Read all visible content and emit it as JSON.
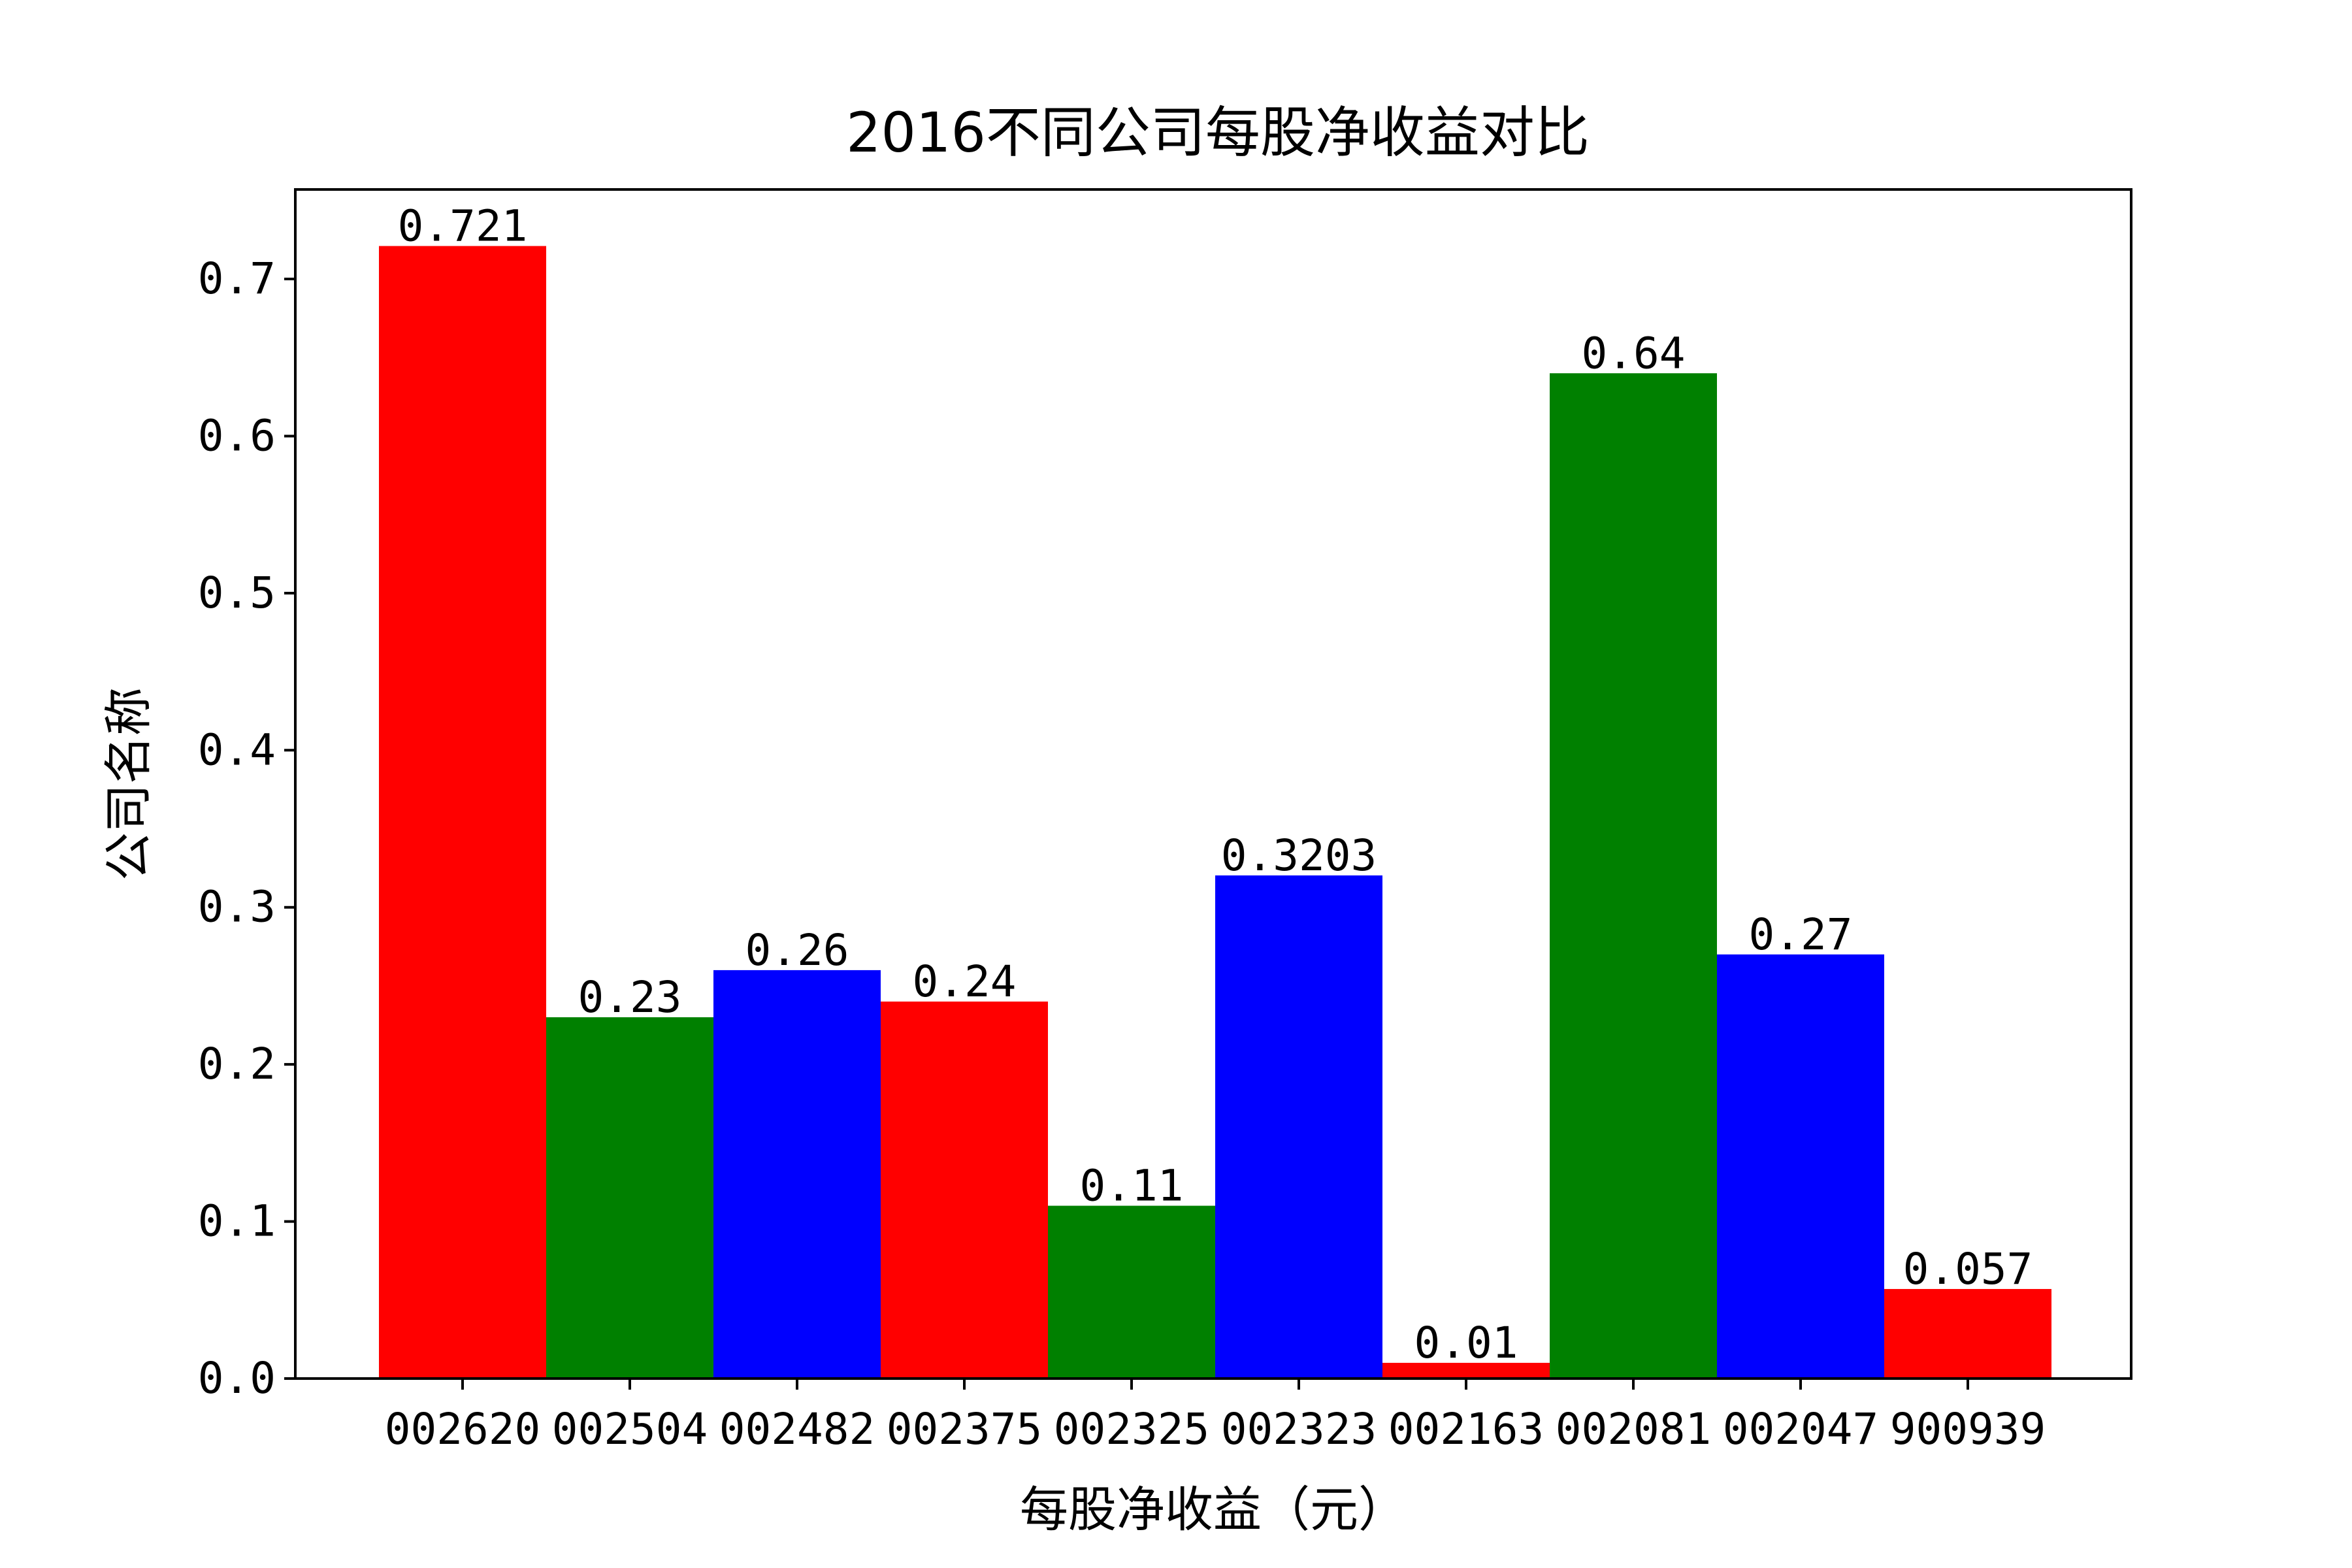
{
  "chart_data": {
    "type": "bar",
    "title": "2016不同公司每股净收益对比",
    "xlabel": "每股净收益（元）",
    "ylabel": "公司名称",
    "categories": [
      "002620",
      "002504",
      "002482",
      "002375",
      "002325",
      "002323",
      "002163",
      "002081",
      "002047",
      "900939"
    ],
    "values": [
      0.721,
      0.23,
      0.26,
      0.24,
      0.11,
      0.3203,
      0.01,
      0.64,
      0.27,
      0.057
    ],
    "value_labels": [
      "0.721",
      "0.23",
      "0.26",
      "0.24",
      "0.11",
      "0.3203",
      "0.01",
      "0.64",
      "0.27",
      "0.057"
    ],
    "bar_colors": [
      "#ff0000",
      "#008000",
      "#0000ff",
      "#ff0000",
      "#008000",
      "#0000ff",
      "#ff0000",
      "#008000",
      "#0000ff",
      "#ff0000"
    ],
    "yticks": [
      "0.0",
      "0.1",
      "0.2",
      "0.3",
      "0.4",
      "0.5",
      "0.6",
      "0.7"
    ],
    "ylim": [
      0,
      0.757
    ],
    "grid": false,
    "legend": "none"
  }
}
